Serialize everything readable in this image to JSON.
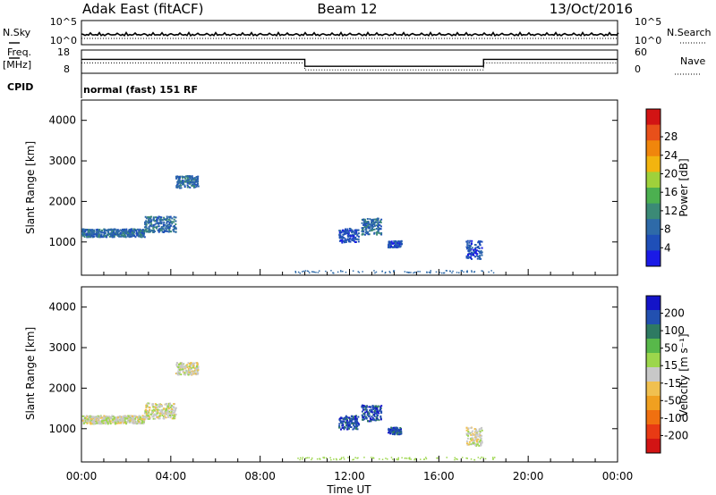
{
  "header": {
    "station": "Adak East (fitACF)",
    "beam": "Beam 12",
    "date": "13/Oct/2016"
  },
  "sky_panel": {
    "left_label": "N.Sky",
    "right_label": "N.Search",
    "left_ticks": [
      "10^5",
      "10^0"
    ],
    "right_ticks": [
      "10^5",
      "10^0"
    ]
  },
  "freq_panel": {
    "left_label_1": "Freq.",
    "left_label_2": "[MHz]",
    "right_label": "Nave",
    "left_ticks": [
      "18",
      "8"
    ],
    "right_ticks": [
      "60",
      "0"
    ],
    "freq_steps": [
      {
        "t": 0,
        "v": 14
      },
      {
        "t": 10,
        "v": 11
      },
      {
        "t": 18,
        "v": 14
      },
      {
        "t": 24,
        "v": 14
      }
    ]
  },
  "cpid": {
    "label": "CPID",
    "value": "normal (fast) 151 RF"
  },
  "chart_data": [
    {
      "type": "heatmap",
      "name": "Power",
      "ylabel": "Slant Range [km]",
      "xlabel": "Time UT",
      "xlim": [
        0,
        24
      ],
      "ylim": [
        180,
        4500
      ],
      "yticks": [
        1000,
        2000,
        3000,
        4000
      ],
      "colorbar": {
        "label": "Power [dB]",
        "ticks": [
          "4",
          "8",
          "12",
          "16",
          "20",
          "24",
          "28"
        ],
        "colors": [
          "#1a1ae6",
          "#1f4fb8",
          "#2e6aa8",
          "#3b8a76",
          "#4cb050",
          "#9fd13b",
          "#f2b40f",
          "#f0860c",
          "#e8501a",
          "#d21414"
        ]
      },
      "regions": [
        {
          "t": [
            0.0,
            2.8
          ],
          "r": [
            1140,
            1340
          ],
          "level": 2
        },
        {
          "t": [
            2.8,
            4.2
          ],
          "r": [
            1260,
            1650
          ],
          "level": 2
        },
        {
          "t": [
            4.2,
            5.2
          ],
          "r": [
            2350,
            2650
          ],
          "level": 2
        },
        {
          "t": [
            11.5,
            12.4
          ],
          "r": [
            1000,
            1350
          ],
          "level": 1
        },
        {
          "t": [
            12.5,
            13.4
          ],
          "r": [
            1200,
            1600
          ],
          "level": 2
        },
        {
          "t": [
            13.7,
            14.3
          ],
          "r": [
            880,
            1050
          ],
          "level": 1
        },
        {
          "t": [
            17.2,
            17.9
          ],
          "r": [
            600,
            1050
          ],
          "level": 1
        }
      ]
    },
    {
      "type": "heatmap",
      "name": "Velocity",
      "ylabel": "Slant Range [km]",
      "xlabel": "Time UT",
      "xlim": [
        0,
        24
      ],
      "ylim": [
        180,
        4500
      ],
      "yticks": [
        1000,
        2000,
        3000,
        4000
      ],
      "colorbar": {
        "label": "Velocity [m s⁻¹]",
        "ticks": [
          "200",
          "100",
          "50",
          "15",
          "-15",
          "-50",
          "-100",
          "-200"
        ],
        "colors": [
          "#1414c8",
          "#2250b0",
          "#2e7a62",
          "#58b84a",
          "#9cd64c",
          "#c8c8c8",
          "#f0c050",
          "#f0a020",
          "#f07010",
          "#e83a14",
          "#d21414"
        ]
      },
      "regions": [
        {
          "t": [
            0.0,
            2.8
          ],
          "r": [
            1140,
            1340
          ],
          "level": 5
        },
        {
          "t": [
            2.8,
            4.2
          ],
          "r": [
            1260,
            1650
          ],
          "level": 5
        },
        {
          "t": [
            4.2,
            5.2
          ],
          "r": [
            2350,
            2650
          ],
          "level": 5
        },
        {
          "t": [
            11.5,
            12.4
          ],
          "r": [
            1000,
            1350
          ],
          "level": 1
        },
        {
          "t": [
            12.5,
            13.4
          ],
          "r": [
            1200,
            1600
          ],
          "level": 1
        },
        {
          "t": [
            13.7,
            14.3
          ],
          "r": [
            880,
            1050
          ],
          "level": 1
        },
        {
          "t": [
            17.2,
            17.9
          ],
          "r": [
            600,
            1050
          ],
          "level": 5
        }
      ]
    }
  ],
  "x_axis": {
    "ticks": [
      "00:00",
      "04:00",
      "08:00",
      "12:00",
      "16:00",
      "20:00",
      "00:00"
    ],
    "label": "Time UT"
  }
}
